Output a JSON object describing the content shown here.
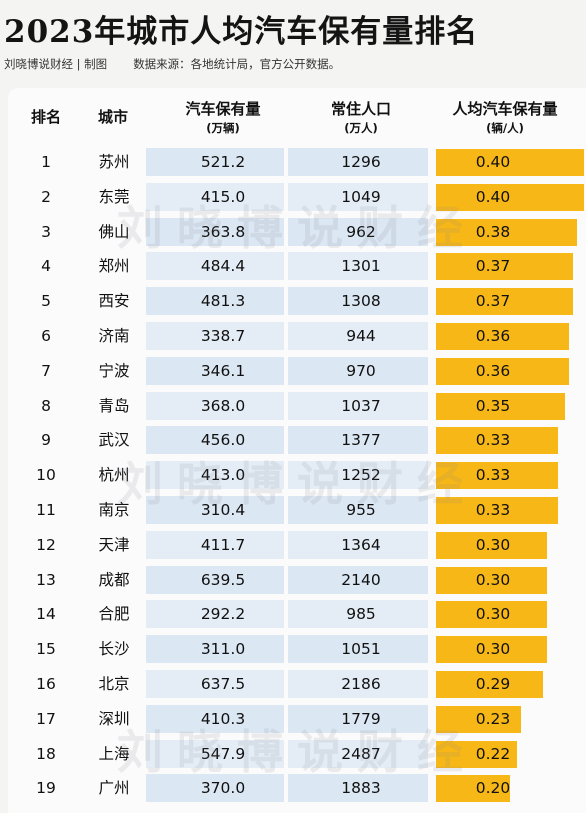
{
  "page": {
    "title": "2023年城市人均汽车保有量排名",
    "source_left": "刘晓博说财经 | 制图",
    "source_right": "数据来源：各地统计局，官方公开数据。",
    "watermark": "刘晓博说财经"
  },
  "colors": {
    "bar": "#f7b817",
    "row_band": "#dbe7f3",
    "panel": "#fbfbfb"
  },
  "chart_data": {
    "type": "table",
    "columns": [
      {
        "label": "排名",
        "unit": ""
      },
      {
        "label": "城市",
        "unit": ""
      },
      {
        "label": "汽车保有量",
        "unit": "(万辆)"
      },
      {
        "label": "常住人口",
        "unit": "(万人)"
      },
      {
        "label": "人均汽车保有量",
        "unit": "(辆/人)"
      }
    ],
    "rows": [
      {
        "rank": "1",
        "city": "苏州",
        "cars": "521.2",
        "population": "1296",
        "per_capita": "0.40"
      },
      {
        "rank": "2",
        "city": "东莞",
        "cars": "415.0",
        "population": "1049",
        "per_capita": "0.40"
      },
      {
        "rank": "3",
        "city": "佛山",
        "cars": "363.8",
        "population": "962",
        "per_capita": "0.38"
      },
      {
        "rank": "4",
        "city": "郑州",
        "cars": "484.4",
        "population": "1301",
        "per_capita": "0.37"
      },
      {
        "rank": "5",
        "city": "西安",
        "cars": "481.3",
        "population": "1308",
        "per_capita": "0.37"
      },
      {
        "rank": "6",
        "city": "济南",
        "cars": "338.7",
        "population": "944",
        "per_capita": "0.36"
      },
      {
        "rank": "7",
        "city": "宁波",
        "cars": "346.1",
        "population": "970",
        "per_capita": "0.36"
      },
      {
        "rank": "8",
        "city": "青岛",
        "cars": "368.0",
        "population": "1037",
        "per_capita": "0.35"
      },
      {
        "rank": "9",
        "city": "武汉",
        "cars": "456.0",
        "population": "1377",
        "per_capita": "0.33"
      },
      {
        "rank": "10",
        "city": "杭州",
        "cars": "413.0",
        "population": "1252",
        "per_capita": "0.33"
      },
      {
        "rank": "11",
        "city": "南京",
        "cars": "310.4",
        "population": "955",
        "per_capita": "0.33"
      },
      {
        "rank": "12",
        "city": "天津",
        "cars": "411.7",
        "population": "1364",
        "per_capita": "0.30"
      },
      {
        "rank": "13",
        "city": "成都",
        "cars": "639.5",
        "population": "2140",
        "per_capita": "0.30"
      },
      {
        "rank": "14",
        "city": "合肥",
        "cars": "292.2",
        "population": "985",
        "per_capita": "0.30"
      },
      {
        "rank": "15",
        "city": "长沙",
        "cars": "311.0",
        "population": "1051",
        "per_capita": "0.30"
      },
      {
        "rank": "16",
        "city": "北京",
        "cars": "637.5",
        "population": "2186",
        "per_capita": "0.29"
      },
      {
        "rank": "17",
        "city": "深圳",
        "cars": "410.3",
        "population": "1779",
        "per_capita": "0.23"
      },
      {
        "rank": "18",
        "city": "上海",
        "cars": "547.9",
        "population": "2487",
        "per_capita": "0.22"
      },
      {
        "rank": "19",
        "city": "广州",
        "cars": "370.0",
        "population": "1883",
        "per_capita": "0.20"
      }
    ]
  }
}
